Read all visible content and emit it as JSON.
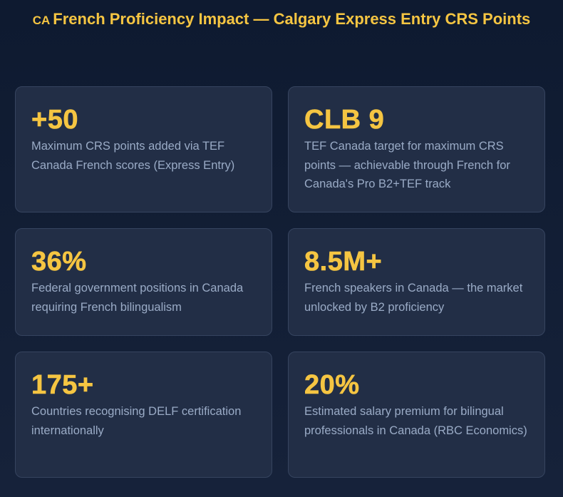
{
  "header": {
    "icon": "CA",
    "title": "French Proficiency Impact — Calgary Express Entry CRS Points"
  },
  "cards": [
    {
      "stat": "+50",
      "description": "Maximum CRS points added via TEF Canada French scores (Express Entry)"
    },
    {
      "stat": "CLB 9",
      "description": "TEF Canada target for maximum CRS points — achievable through French for Canada's Pro B2+TEF track"
    },
    {
      "stat": "36%",
      "description": "Federal government positions in Canada requiring French bilingualism"
    },
    {
      "stat": "8.5M+",
      "description": "French speakers in Canada — the market unlocked by B2 proficiency"
    },
    {
      "stat": "175+",
      "description": "Countries recognising DELF certification internationally"
    },
    {
      "stat": "20%",
      "description": "Estimated salary premium for bilingual professionals in Canada (RBC Economics)"
    }
  ]
}
